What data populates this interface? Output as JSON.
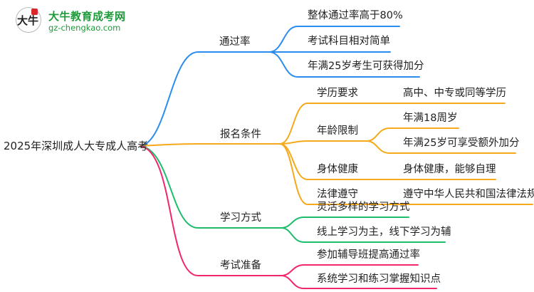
{
  "logo": {
    "name": "大牛教育成考网",
    "url": "gz-chengkao.com",
    "glyph": "大牛"
  },
  "colors": {
    "blue": "#2b8cf0",
    "orange": "#f5a91b",
    "green": "#1dbd6c",
    "pink": "#f2266f"
  },
  "root": "2025年深圳成人大专成人高考",
  "branches": [
    {
      "label": "通过率",
      "children": [
        "整体通过率高于80%",
        "考试科目相对简单",
        "年满25岁考生可获得加分"
      ]
    },
    {
      "label": "报名条件",
      "children": [
        {
          "label": "学历要求",
          "children": [
            "高中、中专或同等学历"
          ]
        },
        {
          "label": "年龄限制",
          "children": [
            "年满18周岁",
            "年满25岁可享受额外加分"
          ]
        },
        {
          "label": "身体健康",
          "children": [
            "身体健康，能够自理"
          ]
        },
        {
          "label": "法律遵守",
          "children": [
            "遵守中华人民共和国法律法规"
          ]
        }
      ]
    },
    {
      "label": "学习方式",
      "children": [
        "灵活多样的学习方式",
        "线上学习为主，线下学习为辅"
      ]
    },
    {
      "label": "考试准备",
      "children": [
        "参加辅导班提高通过率",
        "系统学习和练习掌握知识点"
      ]
    }
  ]
}
